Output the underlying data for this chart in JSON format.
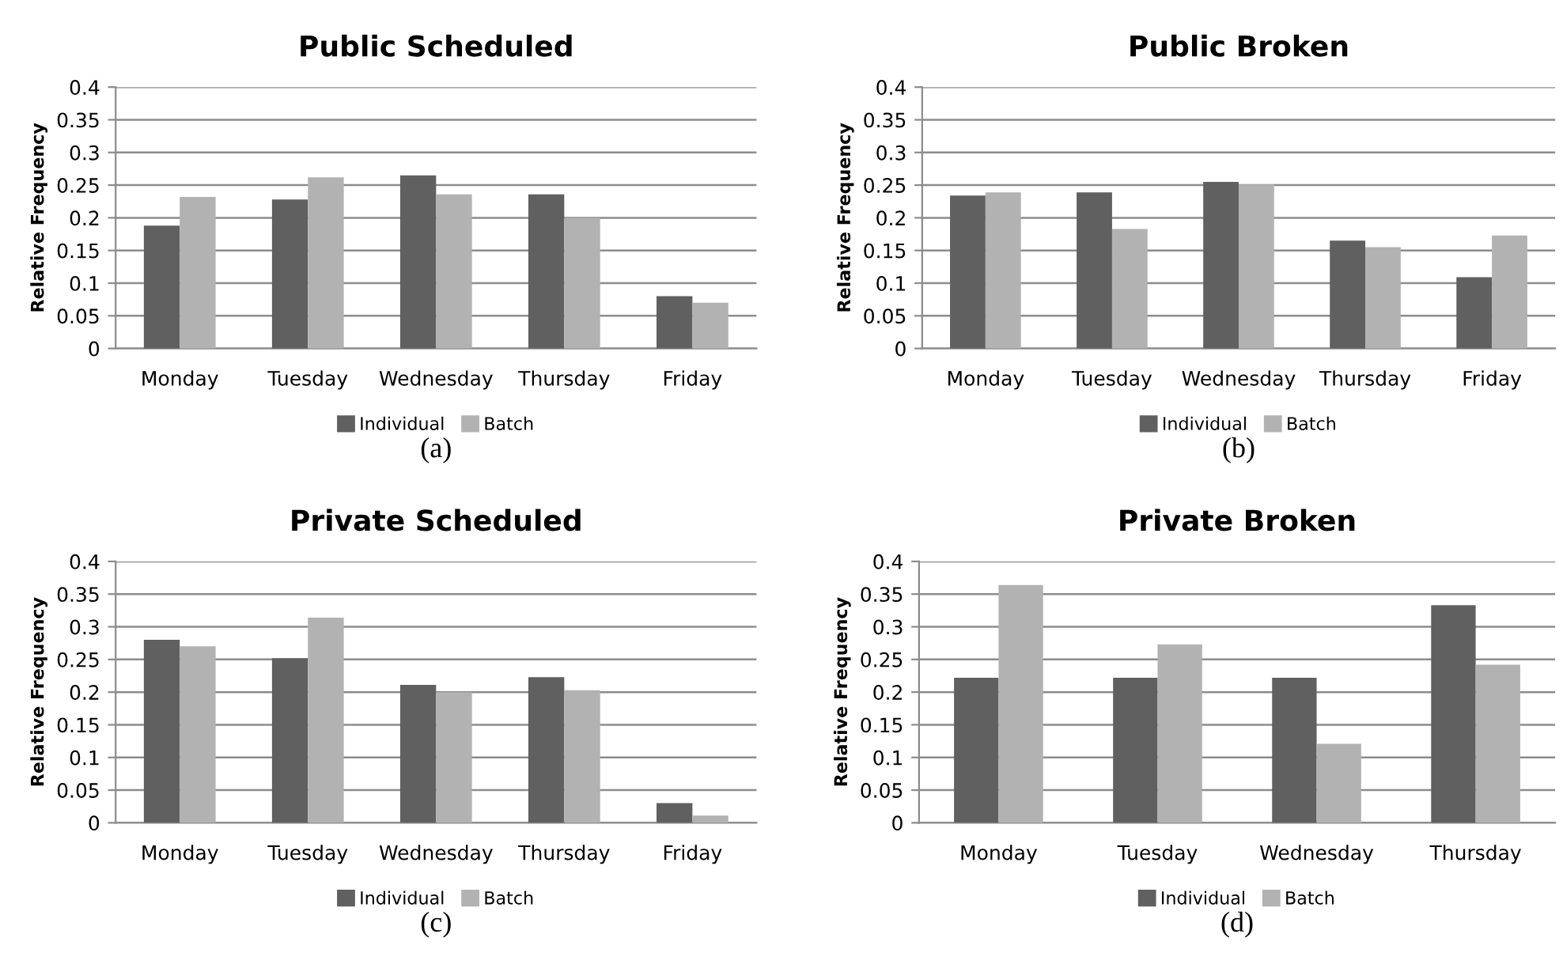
{
  "chart_data": [
    {
      "type": "bar",
      "title": "Public Scheduled",
      "ylabel": "Relative Frequency",
      "categories": [
        "Monday",
        "Tuesday",
        "Wednesday",
        "Thursday",
        "Friday"
      ],
      "series": [
        {
          "name": "Individual",
          "color": "#606060",
          "values": [
            0.188,
            0.228,
            0.265,
            0.236,
            0.08
          ]
        },
        {
          "name": "Batch",
          "color": "#b2b2b2",
          "values": [
            0.232,
            0.262,
            0.236,
            0.2,
            0.07
          ]
        }
      ],
      "ylim": [
        0,
        0.4
      ],
      "yticks": [
        0,
        0.05,
        0.1,
        0.15,
        0.2,
        0.25,
        0.3,
        0.35,
        0.4
      ],
      "grid": "y",
      "legend": "bottom",
      "annotations": [
        "(a)"
      ]
    },
    {
      "type": "bar",
      "title": "Public Broken",
      "ylabel": "Relative Frequency",
      "categories": [
        "Monday",
        "Tuesday",
        "Wednesday",
        "Thursday",
        "Friday"
      ],
      "series": [
        {
          "name": "Individual",
          "color": "#606060",
          "values": [
            0.234,
            0.239,
            0.255,
            0.165,
            0.109
          ]
        },
        {
          "name": "Batch",
          "color": "#b2b2b2",
          "values": [
            0.239,
            0.183,
            0.251,
            0.155,
            0.173
          ]
        }
      ],
      "ylim": [
        0,
        0.4
      ],
      "yticks": [
        0,
        0.05,
        0.1,
        0.15,
        0.2,
        0.25,
        0.3,
        0.35,
        0.4
      ],
      "grid": "y",
      "legend": "bottom",
      "annotations": [
        "(b)"
      ]
    },
    {
      "type": "bar",
      "title": "Private Scheduled",
      "ylabel": "Relative Frequency",
      "categories": [
        "Monday",
        "Tuesday",
        "Wednesday",
        "Thursday",
        "Friday"
      ],
      "series": [
        {
          "name": "Individual",
          "color": "#606060",
          "values": [
            0.28,
            0.252,
            0.211,
            0.223,
            0.03
          ]
        },
        {
          "name": "Batch",
          "color": "#b2b2b2",
          "values": [
            0.27,
            0.314,
            0.2,
            0.203,
            0.011
          ]
        }
      ],
      "ylim": [
        0,
        0.4
      ],
      "yticks": [
        0,
        0.05,
        0.1,
        0.15,
        0.2,
        0.25,
        0.3,
        0.35,
        0.4
      ],
      "grid": "y",
      "legend": "bottom",
      "annotations": [
        "(c)"
      ]
    },
    {
      "type": "bar",
      "title": "Private Broken",
      "ylabel": "Relative Frequency",
      "categories": [
        "Monday",
        "Tuesday",
        "Wednesday",
        "Thursday"
      ],
      "series": [
        {
          "name": "Individual",
          "color": "#606060",
          "values": [
            0.222,
            0.222,
            0.222,
            0.333
          ]
        },
        {
          "name": "Batch",
          "color": "#b2b2b2",
          "values": [
            0.364,
            0.273,
            0.121,
            0.242
          ]
        }
      ],
      "ylim": [
        0,
        0.4
      ],
      "yticks": [
        0,
        0.05,
        0.1,
        0.15,
        0.2,
        0.25,
        0.3,
        0.35,
        0.4
      ],
      "grid": "y",
      "legend": "bottom",
      "annotations": [
        "(d)"
      ]
    }
  ]
}
